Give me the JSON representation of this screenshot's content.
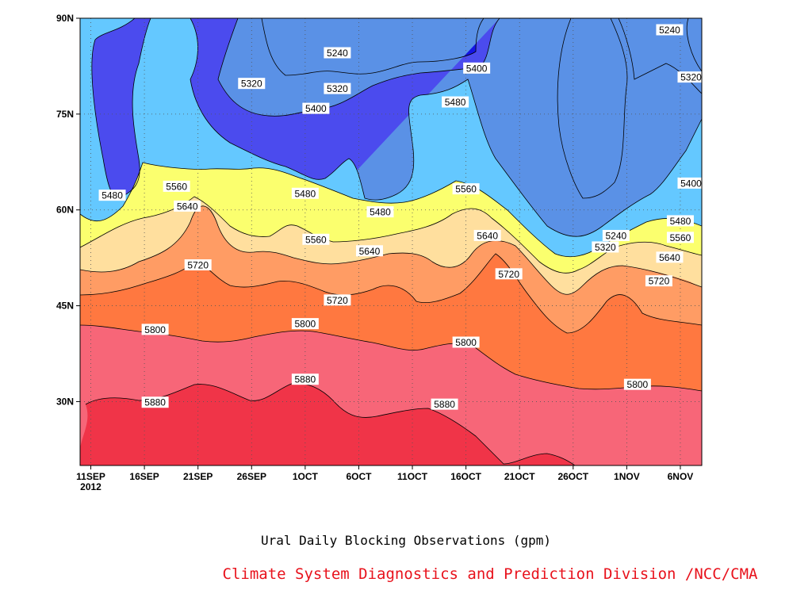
{
  "caption": {
    "title": "Ural Daily Blocking Observations (gpm)",
    "credit": "Climate System Diagnostics and Prediction Division /NCC/CMA"
  },
  "colors": {
    "band_lt_5240": "#0c0c78",
    "band_5240_5320": "#1414e6",
    "band_5320_5400": "#4b4bee",
    "band_5400_5480": "#5a91e6",
    "band_5480_5560": "#64c8ff",
    "band_5560_5640": "#fbff6e",
    "band_5640_5720": "#ffdf9e",
    "band_5720_5800": "#ff9c64",
    "band_5800_5880": "#ff7840",
    "band_5880_5960": "#f76678",
    "band_gt_5880": "#f03448"
  },
  "chart_data": {
    "type": "contour",
    "variable": "500hPa geopotential height (gpm)",
    "x_ticks": [
      {
        "label": "11SEP",
        "sub": "2012"
      },
      {
        "label": "16SEP"
      },
      {
        "label": "21SEP"
      },
      {
        "label": "26SEP"
      },
      {
        "label": "1OCT"
      },
      {
        "label": "6OCT"
      },
      {
        "label": "11OCT"
      },
      {
        "label": "16OCT"
      },
      {
        "label": "21OCT"
      },
      {
        "label": "26OCT"
      },
      {
        "label": "1NOV"
      },
      {
        "label": "6NOV"
      }
    ],
    "y_ticks": [
      "90N",
      "75N",
      "60N",
      "45N",
      "30N"
    ],
    "ylim": [
      20,
      90
    ],
    "xlim": [
      "2012-09-10",
      "2012-11-07"
    ],
    "contour_levels": [
      5240,
      5320,
      5400,
      5480,
      5560,
      5640,
      5720,
      5800,
      5880
    ],
    "contour_labels": [
      {
        "value": "5240",
        "date": "2012-10-04",
        "lat": 84.6
      },
      {
        "value": "5240",
        "date": "2012-10-30",
        "lat": 56.0
      },
      {
        "value": "5240",
        "date": "2012-11-04",
        "lat": 88.2
      },
      {
        "value": "5320",
        "date": "2012-09-26",
        "lat": 79.8
      },
      {
        "value": "5320",
        "date": "2012-10-04",
        "lat": 79.0
      },
      {
        "value": "5320",
        "date": "2012-10-29",
        "lat": 54.2
      },
      {
        "value": "5320",
        "date": "2012-11-06",
        "lat": 80.8
      },
      {
        "value": "5400",
        "date": "2012-10-02",
        "lat": 75.9
      },
      {
        "value": "5400",
        "date": "2012-10-17",
        "lat": 82.2
      },
      {
        "value": "5400",
        "date": "2012-11-06",
        "lat": 64.2
      },
      {
        "value": "5480",
        "date": "2012-09-13",
        "lat": 62.3
      },
      {
        "value": "5480",
        "date": "2012-10-01",
        "lat": 62.6
      },
      {
        "value": "5480",
        "date": "2012-10-08",
        "lat": 59.7
      },
      {
        "value": "5480",
        "date": "2012-10-15",
        "lat": 76.9
      },
      {
        "value": "5480",
        "date": "2012-11-05",
        "lat": 58.3
      },
      {
        "value": "5560",
        "date": "2012-09-19",
        "lat": 63.7
      },
      {
        "value": "5560",
        "date": "2012-10-02",
        "lat": 55.4
      },
      {
        "value": "5560",
        "date": "2012-10-16",
        "lat": 63.3
      },
      {
        "value": "5560",
        "date": "2012-11-05",
        "lat": 55.7
      },
      {
        "value": "5640",
        "date": "2012-09-20",
        "lat": 60.6
      },
      {
        "value": "5640",
        "date": "2012-10-07",
        "lat": 53.6
      },
      {
        "value": "5640",
        "date": "2012-10-18",
        "lat": 56.0
      },
      {
        "value": "5640",
        "date": "2012-11-04",
        "lat": 52.6
      },
      {
        "value": "5720",
        "date": "2012-09-21",
        "lat": 51.4
      },
      {
        "value": "5720",
        "date": "2012-10-04",
        "lat": 45.9
      },
      {
        "value": "5720",
        "date": "2012-10-20",
        "lat": 50.0
      },
      {
        "value": "5720",
        "date": "2012-11-03",
        "lat": 48.9
      },
      {
        "value": "5800",
        "date": "2012-09-17",
        "lat": 41.3
      },
      {
        "value": "5800",
        "date": "2012-10-01",
        "lat": 42.2
      },
      {
        "value": "5800",
        "date": "2012-10-16",
        "lat": 39.3
      },
      {
        "value": "5800",
        "date": "2012-11-01",
        "lat": 32.7
      },
      {
        "value": "5880",
        "date": "2012-09-17",
        "lat": 29.9
      },
      {
        "value": "5880",
        "date": "2012-10-01",
        "lat": 33.5
      },
      {
        "value": "5880",
        "date": "2012-10-14",
        "lat": 29.6
      }
    ],
    "grid": "dotted",
    "legend": "none"
  }
}
